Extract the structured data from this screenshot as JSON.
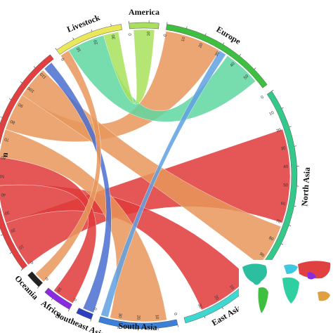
{
  "chart_data": {
    "type": "chord",
    "segments": [
      {
        "name": "America",
        "color": "#a8e05a",
        "max": 15,
        "ticks": [
          0,
          10
        ]
      },
      {
        "name": "Europe",
        "color": "#3fbf3f",
        "max": 60,
        "ticks": [
          0,
          10,
          20,
          30,
          40,
          50
        ]
      },
      {
        "name": "North Asia",
        "color": "#34c98a",
        "max": 100,
        "ticks": [
          0,
          10,
          20,
          30,
          40,
          50,
          60,
          70,
          80,
          90
        ]
      },
      {
        "name": "East Asia",
        "color": "#3fd8d0",
        "max": 40,
        "ticks": [
          0,
          10,
          20,
          30
        ]
      },
      {
        "name": "South Asia",
        "color": "#3b7fd9",
        "max": 40,
        "ticks": [
          0,
          10,
          20,
          30
        ]
      },
      {
        "name": "Southeast Asia",
        "color": "#2a3fbf",
        "max": 8,
        "ticks": [
          0
        ]
      },
      {
        "name": "Africa",
        "color": "#8a2be2",
        "max": 15,
        "ticks": [
          0,
          10
        ]
      },
      {
        "name": "Oceania",
        "color": "#222222",
        "max": 8,
        "ticks": [
          0
        ]
      },
      {
        "name": "n",
        "color": "#e04040",
        "max": 120,
        "ticks": [
          0,
          10,
          20,
          30,
          40,
          50,
          60,
          70,
          80,
          90,
          100,
          110
        ]
      },
      {
        "name": "Livestock",
        "color": "#e8e85a",
        "max": 35,
        "ticks": [
          0,
          10,
          20,
          30
        ]
      }
    ],
    "chords": [
      {
        "from": "n",
        "from_range": [
          0,
          25
        ],
        "to": "North Asia",
        "to_range": [
          20,
          70
        ],
        "color": "#e03a3a"
      },
      {
        "from": "n",
        "from_range": [
          25,
          45
        ],
        "to": "East Asia",
        "to_range": [
          0,
          30
        ],
        "color": "#e03a3a"
      },
      {
        "from": "n",
        "from_range": [
          45,
          60
        ],
        "to": "Africa",
        "to_range": [
          0,
          12
        ],
        "color": "#e03a3a"
      },
      {
        "from": "n",
        "from_range": [
          60,
          75
        ],
        "to": "South Asia",
        "to_range": [
          5,
          35
        ],
        "color": "#e8965a"
      },
      {
        "from": "n",
        "from_range": [
          75,
          95
        ],
        "to": "Europe",
        "to_range": [
          0,
          30
        ],
        "color": "#e8965a"
      },
      {
        "from": "n",
        "from_range": [
          95,
          112
        ],
        "to": "North Asia",
        "to_range": [
          72,
          95
        ],
        "color": "#e8965a"
      },
      {
        "from": "n",
        "from_range": [
          113,
          118
        ],
        "to": "Southeast Asia",
        "to_range": [
          0,
          6
        ],
        "color": "#4a6fd0"
      },
      {
        "from": "Livestock",
        "from_range": [
          5,
          25
        ],
        "to": "Europe",
        "to_range": [
          35,
          55
        ],
        "color": "#5fd6a0"
      },
      {
        "from": "Livestock",
        "from_range": [
          25,
          33
        ],
        "to": "America",
        "to_range": [
          2,
          13
        ],
        "color": "#a8e05a"
      },
      {
        "from": "Livestock",
        "from_range": [
          0,
          5
        ],
        "to": "Oceania",
        "to_range": [
          0,
          6
        ],
        "color": "#e8965a"
      },
      {
        "from": "Europe",
        "from_range": [
          30,
          34
        ],
        "to": "South Asia",
        "to_range": [
          36,
          40
        ],
        "color": "#5fa0e0"
      }
    ]
  }
}
